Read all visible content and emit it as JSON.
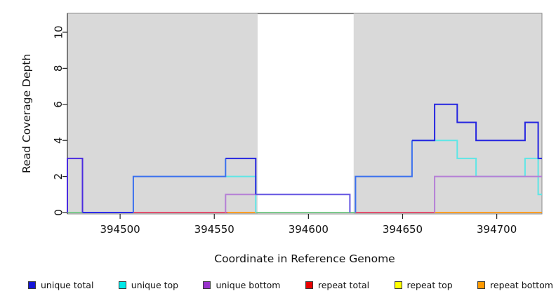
{
  "figure": {
    "xlabel": "Coordinate in Reference Genome",
    "ylabel": "Read Coverage Depth"
  },
  "legend": {
    "items": [
      {
        "label": "unique total",
        "color": "#1515d6"
      },
      {
        "label": "unique top",
        "color": "#00e8e8"
      },
      {
        "label": "unique bottom",
        "color": "#9933cc"
      },
      {
        "label": "repeat total",
        "color": "#e80000"
      },
      {
        "label": "repeat top",
        "color": "#ffff00"
      },
      {
        "label": "repeat bottom",
        "color": "#ff9900"
      }
    ]
  },
  "chart_data": {
    "type": "line",
    "subtype": "step-coverage",
    "title": "",
    "xlabel": "Coordinate in Reference Genome",
    "ylabel": "Read Coverage Depth",
    "xlim": [
      394472,
      394724
    ],
    "ylim": [
      0,
      11.05
    ],
    "xticks": [
      394500,
      394550,
      394600,
      394650,
      394700
    ],
    "yticks": [
      0,
      2,
      4,
      6,
      8,
      10
    ],
    "grid": false,
    "legend_position": "bottom",
    "plot_background": "#ffffff",
    "shading": {
      "color": "#d9d9d9",
      "regions": [
        [
          394472,
          394573
        ],
        [
          394624,
          394724
        ]
      ],
      "white_gap": [
        394573,
        394624
      ]
    },
    "series": [
      {
        "name": "unique total",
        "color": "#1515d6",
        "steps": [
          [
            394472,
            3
          ],
          [
            394480,
            0
          ],
          [
            394507,
            2
          ],
          [
            394556,
            3
          ],
          [
            394572,
            1
          ],
          [
            394622,
            0
          ],
          [
            394625,
            2
          ],
          [
            394655,
            4
          ],
          [
            394667,
            6
          ],
          [
            394679,
            5
          ],
          [
            394689,
            4
          ],
          [
            394715,
            5
          ],
          [
            394722,
            3
          ],
          [
            394724,
            3
          ]
        ]
      },
      {
        "name": "unique top",
        "color": "#00e8e8",
        "steps": [
          [
            394472,
            0
          ],
          [
            394507,
            2
          ],
          [
            394572,
            0
          ],
          [
            394625,
            2
          ],
          [
            394655,
            4
          ],
          [
            394679,
            3
          ],
          [
            394689,
            2
          ],
          [
            394715,
            3
          ],
          [
            394722,
            1
          ],
          [
            394724,
            1
          ]
        ]
      },
      {
        "name": "unique bottom",
        "color": "#9933cc",
        "steps": [
          [
            394472,
            3
          ],
          [
            394480,
            0
          ],
          [
            394556,
            1
          ],
          [
            394622,
            0
          ],
          [
            394667,
            2
          ],
          [
            394724,
            2
          ]
        ]
      },
      {
        "name": "repeat total",
        "color": "#e80000",
        "steps": [
          [
            394472,
            0
          ],
          [
            394724,
            0
          ]
        ]
      },
      {
        "name": "repeat top",
        "color": "#ffff00",
        "steps": [
          [
            394472,
            0
          ],
          [
            394724,
            0
          ]
        ]
      },
      {
        "name": "repeat bottom",
        "color": "#ff9900",
        "steps": [
          [
            394472,
            0
          ],
          [
            394724,
            0
          ]
        ]
      }
    ],
    "visible_polylines": [
      {
        "name": "zero-green-left",
        "color": "#7bc98c",
        "points": [
          [
            394472,
            0
          ],
          [
            394480,
            0
          ]
        ]
      },
      {
        "name": "zero-pink-left",
        "color": "#e0506e",
        "points": [
          [
            394507,
            0
          ],
          [
            394557,
            0
          ]
        ]
      },
      {
        "name": "zero-orange-left",
        "color": "#ff9d26",
        "points": [
          [
            394557,
            0
          ],
          [
            394572,
            0
          ]
        ]
      },
      {
        "name": "zero-green-mid",
        "color": "#7bc98c",
        "points": [
          [
            394572,
            0
          ],
          [
            394625,
            0
          ]
        ]
      },
      {
        "name": "zero-pink-mid",
        "color": "#e0506e",
        "points": [
          [
            394625,
            0
          ],
          [
            394667,
            0
          ]
        ]
      },
      {
        "name": "zero-orange-right",
        "color": "#ff9d26",
        "points": [
          [
            394667,
            0
          ],
          [
            394724,
            0
          ]
        ]
      },
      {
        "name": "unique-top-left",
        "color": "#5ee6e6",
        "points": [
          [
            394556,
            2
          ],
          [
            394572,
            2
          ],
          [
            394572,
            0
          ]
        ]
      },
      {
        "name": "unique-top-right",
        "color": "#5ee6e6",
        "points": [
          [
            394655,
            4
          ],
          [
            394679,
            4
          ],
          [
            394679,
            3
          ],
          [
            394689,
            3
          ],
          [
            394689,
            2
          ],
          [
            394715,
            2
          ],
          [
            394715,
            3
          ],
          [
            394722,
            3
          ],
          [
            394722,
            1
          ],
          [
            394724,
            1
          ]
        ]
      },
      {
        "name": "unique-bottom-mid",
        "color": "#b57fd6",
        "points": [
          [
            394556,
            0
          ],
          [
            394556,
            1
          ],
          [
            394572,
            1
          ]
        ]
      },
      {
        "name": "unique-bottom-right",
        "color": "#b57fd6",
        "points": [
          [
            394667,
            0
          ],
          [
            394667,
            2
          ],
          [
            394724,
            2
          ]
        ]
      },
      {
        "name": "total-left-violet",
        "color": "#4b2be0",
        "points": [
          [
            394472,
            0
          ],
          [
            394472,
            3
          ],
          [
            394480,
            3
          ],
          [
            394480,
            0
          ]
        ]
      },
      {
        "name": "total-zero-blue",
        "color": "#2d2de8",
        "points": [
          [
            394480,
            0
          ],
          [
            394507,
            0
          ]
        ]
      },
      {
        "name": "total-bright-a",
        "color": "#3a70ee",
        "points": [
          [
            394507,
            0
          ],
          [
            394507,
            2
          ],
          [
            394556,
            2
          ],
          [
            394556,
            3
          ]
        ]
      },
      {
        "name": "total-dark-a",
        "color": "#2525e0",
        "points": [
          [
            394556,
            3
          ],
          [
            394572,
            3
          ],
          [
            394572,
            1
          ]
        ]
      },
      {
        "name": "total-slate-gap",
        "color": "#6556e2",
        "points": [
          [
            394572,
            1
          ],
          [
            394622,
            1
          ],
          [
            394622,
            0
          ]
        ]
      },
      {
        "name": "total-bright-b",
        "color": "#3a70ee",
        "points": [
          [
            394625,
            0
          ],
          [
            394625,
            2
          ],
          [
            394655,
            2
          ],
          [
            394655,
            4
          ]
        ]
      },
      {
        "name": "total-dark-b",
        "color": "#2525e0",
        "points": [
          [
            394655,
            4
          ],
          [
            394667,
            4
          ],
          [
            394667,
            6
          ],
          [
            394679,
            6
          ],
          [
            394679,
            5
          ],
          [
            394689,
            5
          ],
          [
            394689,
            4
          ],
          [
            394715,
            4
          ],
          [
            394715,
            5
          ],
          [
            394722,
            5
          ],
          [
            394722,
            3
          ],
          [
            394724,
            3
          ]
        ]
      }
    ]
  }
}
